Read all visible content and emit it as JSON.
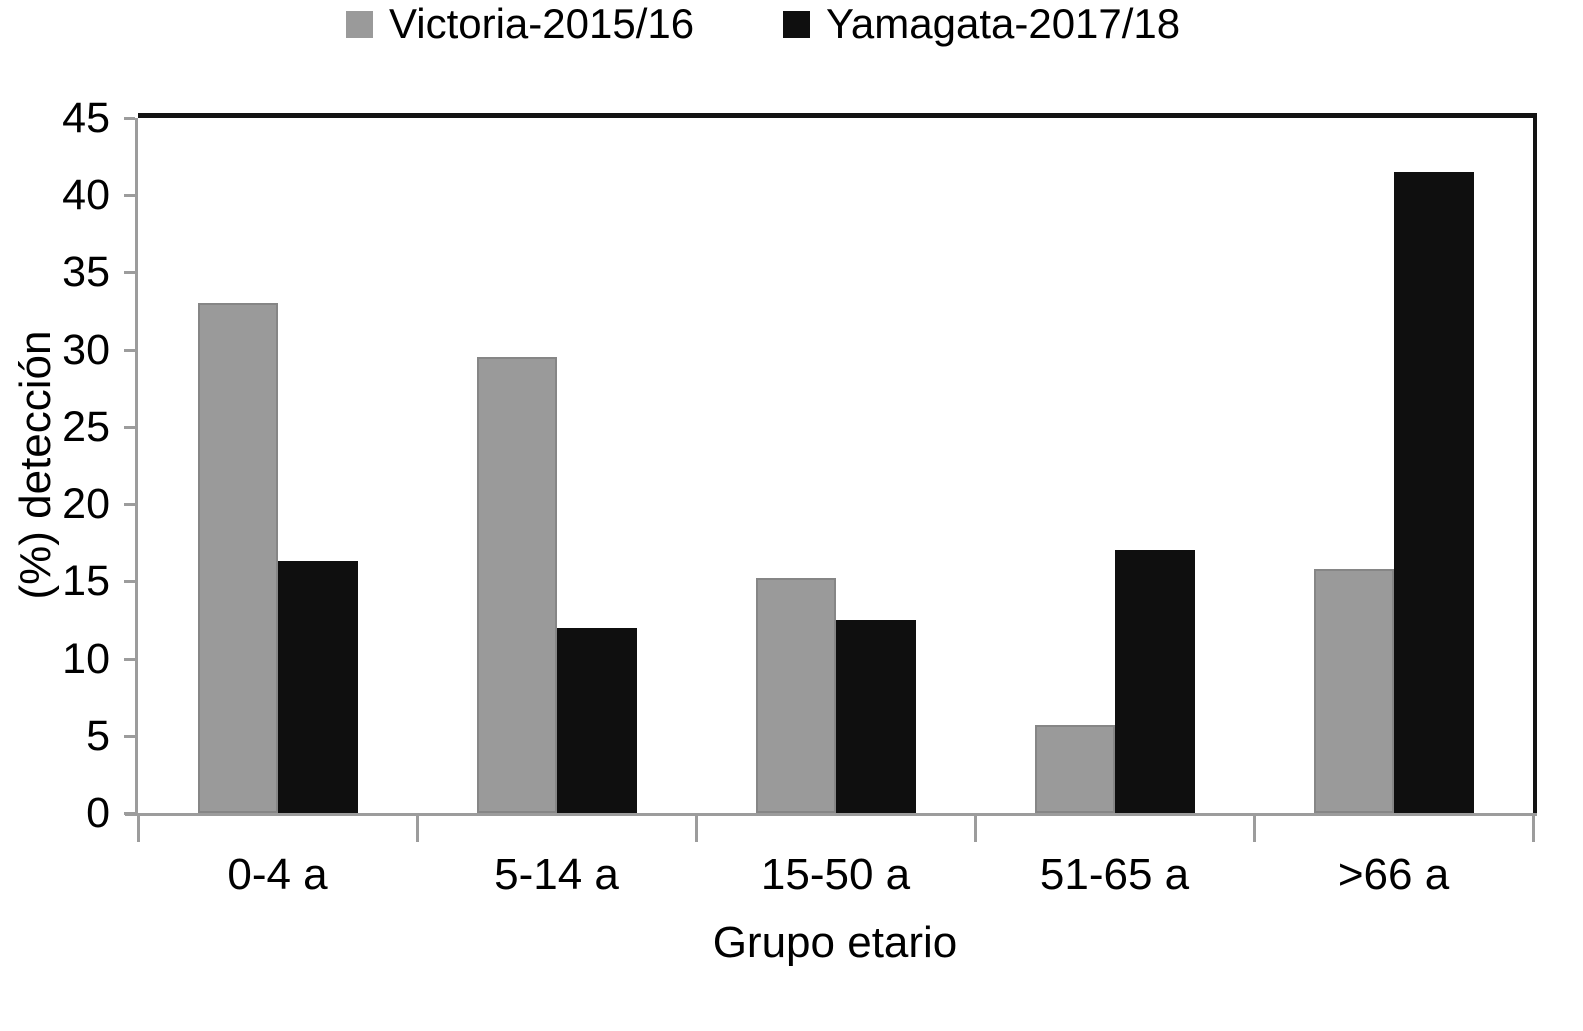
{
  "chart_data": {
    "type": "bar",
    "title": "",
    "categories": [
      "0-4 a",
      "5-14 a",
      "15-50 a",
      "51-65 a",
      ">66 a"
    ],
    "series": [
      {
        "name": "Victoria-2015/16",
        "color": "#9a9a9a",
        "values": [
          33.0,
          29.5,
          15.2,
          5.7,
          15.8
        ]
      },
      {
        "name": "Yamagata-2017/18",
        "color": "#0f0f0f",
        "values": [
          16.3,
          12.0,
          12.5,
          17.0,
          41.5
        ]
      }
    ],
    "xlabel": "Grupo etario",
    "ylabel": "(%) detección",
    "ylim": [
      0,
      45
    ],
    "ytick_step": 5,
    "legend_position": "top",
    "grid": false
  },
  "colors": {
    "axis": "#9c9c9c",
    "frame": "#131313",
    "text": "#000000",
    "background": "#ffffff"
  }
}
